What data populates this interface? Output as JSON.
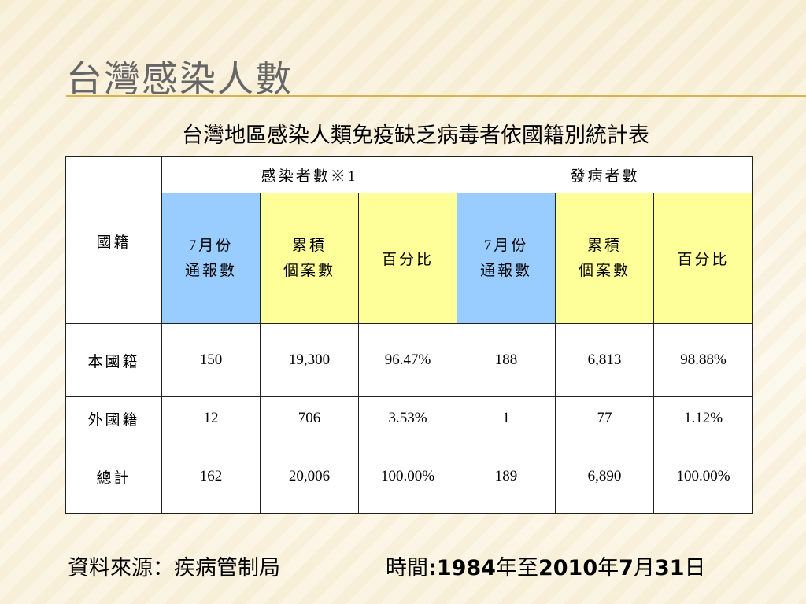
{
  "slide": {
    "title": "台灣感染人數",
    "subtitle": "台灣地區感染人類免疫缺乏病毒者依國籍別統計表"
  },
  "table": {
    "corner": "國籍",
    "group_infected": "感染者數※1",
    "group_disease": "發病者數",
    "subheaders": [
      "7月份\n通報數",
      "累積\n個案數",
      "百分比",
      "7月份\n通報數",
      "累積\n個案數",
      "百分比"
    ],
    "rows": [
      {
        "label": "本國籍",
        "values": [
          "150",
          "19,300",
          "96.47%",
          "188",
          "6,813",
          "98.88%"
        ]
      },
      {
        "label": "外國籍",
        "values": [
          "12",
          "706",
          "3.53%",
          "1",
          "77",
          "1.12%"
        ]
      },
      {
        "label": "總計",
        "values": [
          "162",
          "20,006",
          "100.00%",
          "189",
          "6,890",
          "100.00%"
        ]
      }
    ]
  },
  "footer": {
    "source": "資料來源：疾病管制局",
    "time_prefix": "時間",
    "colon": ":",
    "year1": "1984",
    "nian1": "年至",
    "year2": "2010",
    "nian2": "年",
    "month": "7",
    "yue": "月",
    "day": "31",
    "ri": "日"
  },
  "colors": {
    "header_blue": "#99ccff",
    "header_yellow": "#ffff99",
    "rule": "#d9b24c"
  }
}
